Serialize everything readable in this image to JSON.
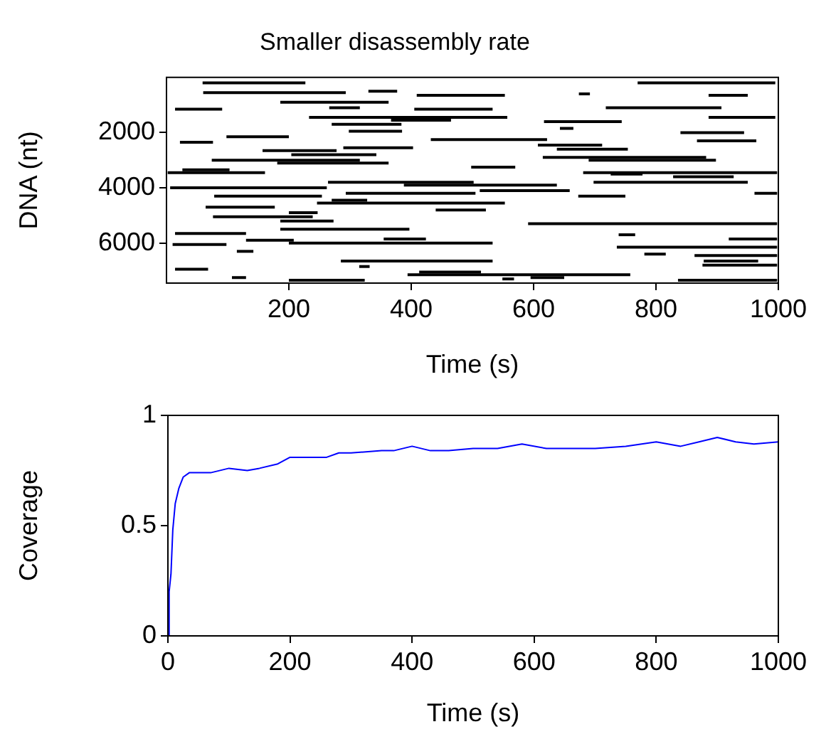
{
  "chart_data": [
    {
      "type": "line",
      "title": "Smaller disassembly rate",
      "xlabel": "Time (s)",
      "ylabel": "DNA (nt)",
      "xlim": [
        0,
        1000
      ],
      "ylim": [
        7450,
        0
      ],
      "xticks": [
        200,
        400,
        600,
        800,
        1000
      ],
      "yticks": [
        2000,
        4000,
        6000
      ],
      "grid": false,
      "legend": false,
      "marker": "none",
      "line_style": "solid",
      "series": [
        {
          "color": "#000000",
          "x": [
            59,
            227
          ],
          "values": [
            200,
            200
          ]
        },
        {
          "color": "#000000",
          "x": [
            770,
            995
          ],
          "values": [
            200,
            200
          ]
        },
        {
          "color": "#000000",
          "x": [
            60,
            293
          ],
          "values": [
            550,
            550
          ]
        },
        {
          "color": "#000000",
          "x": [
            330,
            377
          ],
          "values": [
            500,
            500
          ]
        },
        {
          "color": "#000000",
          "x": [
            409,
            553
          ],
          "values": [
            650,
            650
          ]
        },
        {
          "color": "#000000",
          "x": [
            674,
            692
          ],
          "values": [
            600,
            600
          ]
        },
        {
          "color": "#000000",
          "x": [
            886,
            950
          ],
          "values": [
            650,
            650
          ]
        },
        {
          "color": "#000000",
          "x": [
            186,
            363
          ],
          "values": [
            900,
            900
          ]
        },
        {
          "color": "#000000",
          "x": [
            266,
            316
          ],
          "values": [
            1100,
            1100
          ]
        },
        {
          "color": "#000000",
          "x": [
            14,
            91
          ],
          "values": [
            1150,
            1150
          ]
        },
        {
          "color": "#000000",
          "x": [
            405,
            533
          ],
          "values": [
            1150,
            1150
          ]
        },
        {
          "color": "#000000",
          "x": [
            718,
            907
          ],
          "values": [
            1100,
            1100
          ]
        },
        {
          "color": "#000000",
          "x": [
            233,
            557
          ],
          "values": [
            1450,
            1450
          ]
        },
        {
          "color": "#000000",
          "x": [
            367,
            465
          ],
          "values": [
            1550,
            1550
          ]
        },
        {
          "color": "#000000",
          "x": [
            617,
            744
          ],
          "values": [
            1600,
            1600
          ]
        },
        {
          "color": "#000000",
          "x": [
            270,
            384
          ],
          "values": [
            1700,
            1700
          ]
        },
        {
          "color": "#000000",
          "x": [
            298,
            385
          ],
          "values": [
            1950,
            1950
          ]
        },
        {
          "color": "#000000",
          "x": [
            886,
            995
          ],
          "values": [
            1450,
            1450
          ]
        },
        {
          "color": "#000000",
          "x": [
            643,
            665
          ],
          "values": [
            1850,
            1850
          ]
        },
        {
          "color": "#000000",
          "x": [
            98,
            200
          ],
          "values": [
            2150,
            2150
          ]
        },
        {
          "color": "#000000",
          "x": [
            840,
            944
          ],
          "values": [
            2000,
            2000
          ]
        },
        {
          "color": "#000000",
          "x": [
            432,
            622
          ],
          "values": [
            2250,
            2250
          ]
        },
        {
          "color": "#000000",
          "x": [
            867,
            964
          ],
          "values": [
            2300,
            2300
          ]
        },
        {
          "color": "#000000",
          "x": [
            22,
            76
          ],
          "values": [
            2350,
            2350
          ]
        },
        {
          "color": "#000000",
          "x": [
            289,
            403
          ],
          "values": [
            2550,
            2550
          ]
        },
        {
          "color": "#000000",
          "x": [
            157,
            278
          ],
          "values": [
            2650,
            2650
          ]
        },
        {
          "color": "#000000",
          "x": [
            607,
            712
          ],
          "values": [
            2450,
            2450
          ]
        },
        {
          "color": "#000000",
          "x": [
            638,
            754
          ],
          "values": [
            2600,
            2600
          ]
        },
        {
          "color": "#000000",
          "x": [
            204,
            343
          ],
          "values": [
            2800,
            2800
          ]
        },
        {
          "color": "#000000",
          "x": [
            615,
            882
          ],
          "values": [
            2900,
            2900
          ]
        },
        {
          "color": "#000000",
          "x": [
            74,
            316
          ],
          "values": [
            3000,
            3000
          ]
        },
        {
          "color": "#000000",
          "x": [
            690,
            898
          ],
          "values": [
            3000,
            3000
          ]
        },
        {
          "color": "#000000",
          "x": [
            181,
            363
          ],
          "values": [
            3100,
            3100
          ]
        },
        {
          "color": "#000000",
          "x": [
            498,
            570
          ],
          "values": [
            3250,
            3250
          ]
        },
        {
          "color": "#000000",
          "x": [
            26,
            103
          ],
          "values": [
            3350,
            3350
          ]
        },
        {
          "color": "#000000",
          "x": [
            2,
            161
          ],
          "values": [
            3450,
            3450
          ]
        },
        {
          "color": "#000000",
          "x": [
            726,
            778
          ],
          "values": [
            3500,
            3500
          ]
        },
        {
          "color": "#000000",
          "x": [
            828,
            927
          ],
          "values": [
            3600,
            3600
          ]
        },
        {
          "color": "#000000",
          "x": [
            681,
            998
          ],
          "values": [
            3450,
            3450
          ]
        },
        {
          "color": "#000000",
          "x": [
            264,
            502
          ],
          "values": [
            3800,
            3800
          ]
        },
        {
          "color": "#000000",
          "x": [
            388,
            638
          ],
          "values": [
            3900,
            3900
          ]
        },
        {
          "color": "#000000",
          "x": [
            698,
            950
          ],
          "values": [
            3800,
            3800
          ]
        },
        {
          "color": "#000000",
          "x": [
            6,
            262
          ],
          "values": [
            4000,
            4000
          ]
        },
        {
          "color": "#000000",
          "x": [
            293,
            505
          ],
          "values": [
            4200,
            4200
          ]
        },
        {
          "color": "#000000",
          "x": [
            512,
            659
          ],
          "values": [
            4100,
            4100
          ]
        },
        {
          "color": "#000000",
          "x": [
            78,
            254
          ],
          "values": [
            4300,
            4300
          ]
        },
        {
          "color": "#000000",
          "x": [
            673,
            750
          ],
          "values": [
            4300,
            4300
          ]
        },
        {
          "color": "#000000",
          "x": [
            270,
            328
          ],
          "values": [
            4450,
            4450
          ]
        },
        {
          "color": "#000000",
          "x": [
            246,
            553
          ],
          "values": [
            4550,
            4550
          ]
        },
        {
          "color": "#000000",
          "x": [
            961,
            998
          ],
          "values": [
            4200,
            4200
          ]
        },
        {
          "color": "#000000",
          "x": [
            64,
            177
          ],
          "values": [
            4700,
            4700
          ]
        },
        {
          "color": "#000000",
          "x": [
            440,
            522
          ],
          "values": [
            4800,
            4800
          ]
        },
        {
          "color": "#000000",
          "x": [
            200,
            247
          ],
          "values": [
            4900,
            4900
          ]
        },
        {
          "color": "#000000",
          "x": [
            76,
            239
          ],
          "values": [
            5050,
            5050
          ]
        },
        {
          "color": "#000000",
          "x": [
            186,
            273
          ],
          "values": [
            5200,
            5200
          ]
        },
        {
          "color": "#000000",
          "x": [
            591,
            998
          ],
          "values": [
            5300,
            5300
          ]
        },
        {
          "color": "#000000",
          "x": [
            186,
            397
          ],
          "values": [
            5500,
            5500
          ]
        },
        {
          "color": "#000000",
          "x": [
            14,
            130
          ],
          "values": [
            5650,
            5650
          ]
        },
        {
          "color": "#000000",
          "x": [
            355,
            424
          ],
          "values": [
            5850,
            5850
          ]
        },
        {
          "color": "#000000",
          "x": [
            130,
            208
          ],
          "values": [
            5900,
            5900
          ]
        },
        {
          "color": "#000000",
          "x": [
            200,
            533
          ],
          "values": [
            6000,
            6000
          ]
        },
        {
          "color": "#000000",
          "x": [
            739,
            766
          ],
          "values": [
            5700,
            5700
          ]
        },
        {
          "color": "#000000",
          "x": [
            919,
            998
          ],
          "values": [
            5850,
            5850
          ]
        },
        {
          "color": "#000000",
          "x": [
            10,
            98
          ],
          "values": [
            6050,
            6050
          ]
        },
        {
          "color": "#000000",
          "x": [
            736,
            998
          ],
          "values": [
            6150,
            6150
          ]
        },
        {
          "color": "#000000",
          "x": [
            115,
            142
          ],
          "values": [
            6300,
            6300
          ]
        },
        {
          "color": "#000000",
          "x": [
            781,
            816
          ],
          "values": [
            6400,
            6400
          ]
        },
        {
          "color": "#000000",
          "x": [
            863,
            998
          ],
          "values": [
            6450,
            6450
          ]
        },
        {
          "color": "#000000",
          "x": [
            285,
            533
          ],
          "values": [
            6650,
            6650
          ]
        },
        {
          "color": "#000000",
          "x": [
            878,
            967
          ],
          "values": [
            6650,
            6650
          ]
        },
        {
          "color": "#000000",
          "x": [
            876,
            998
          ],
          "values": [
            6800,
            6800
          ]
        },
        {
          "color": "#000000",
          "x": [
            315,
            332
          ],
          "values": [
            6850,
            6850
          ]
        },
        {
          "color": "#000000",
          "x": [
            14,
            68
          ],
          "values": [
            6950,
            6950
          ]
        },
        {
          "color": "#000000",
          "x": [
            413,
            514
          ],
          "values": [
            7050,
            7050
          ]
        },
        {
          "color": "#000000",
          "x": [
            394,
            758
          ],
          "values": [
            7150,
            7150
          ]
        },
        {
          "color": "#000000",
          "x": [
            107,
            130
          ],
          "values": [
            7250,
            7250
          ]
        },
        {
          "color": "#000000",
          "x": [
            200,
            324
          ],
          "values": [
            7350,
            7350
          ]
        },
        {
          "color": "#000000",
          "x": [
            595,
            650
          ],
          "values": [
            7250,
            7250
          ]
        },
        {
          "color": "#000000",
          "x": [
            836,
            998
          ],
          "values": [
            7350,
            7350
          ]
        },
        {
          "color": "#000000",
          "x": [
            549,
            568
          ],
          "values": [
            7300,
            7300
          ]
        }
      ]
    },
    {
      "type": "line",
      "xlabel": "Time (s)",
      "ylabel": "Coverage",
      "xlim": [
        0,
        1000
      ],
      "ylim": [
        0,
        1
      ],
      "xticks": [
        0,
        200,
        400,
        600,
        800,
        1000
      ],
      "yticks": [
        0,
        0.5,
        1
      ],
      "grid": false,
      "legend": false,
      "marker": "none",
      "line_style": "solid",
      "series": [
        {
          "color": "#0000ff",
          "x": [
            0,
            2,
            5,
            8,
            12,
            18,
            25,
            35,
            50,
            70,
            100,
            130,
            150,
            180,
            200,
            230,
            260,
            280,
            300,
            350,
            370,
            400,
            430,
            460,
            500,
            540,
            580,
            620,
            650,
            700,
            750,
            800,
            840,
            870,
            900,
            930,
            960,
            1000
          ],
          "values": [
            0,
            0.2,
            0.28,
            0.48,
            0.6,
            0.67,
            0.72,
            0.74,
            0.74,
            0.74,
            0.76,
            0.75,
            0.76,
            0.78,
            0.81,
            0.81,
            0.81,
            0.83,
            0.83,
            0.84,
            0.84,
            0.86,
            0.84,
            0.84,
            0.85,
            0.85,
            0.87,
            0.85,
            0.85,
            0.85,
            0.86,
            0.88,
            0.86,
            0.88,
            0.9,
            0.88,
            0.87,
            0.88
          ]
        }
      ]
    }
  ]
}
